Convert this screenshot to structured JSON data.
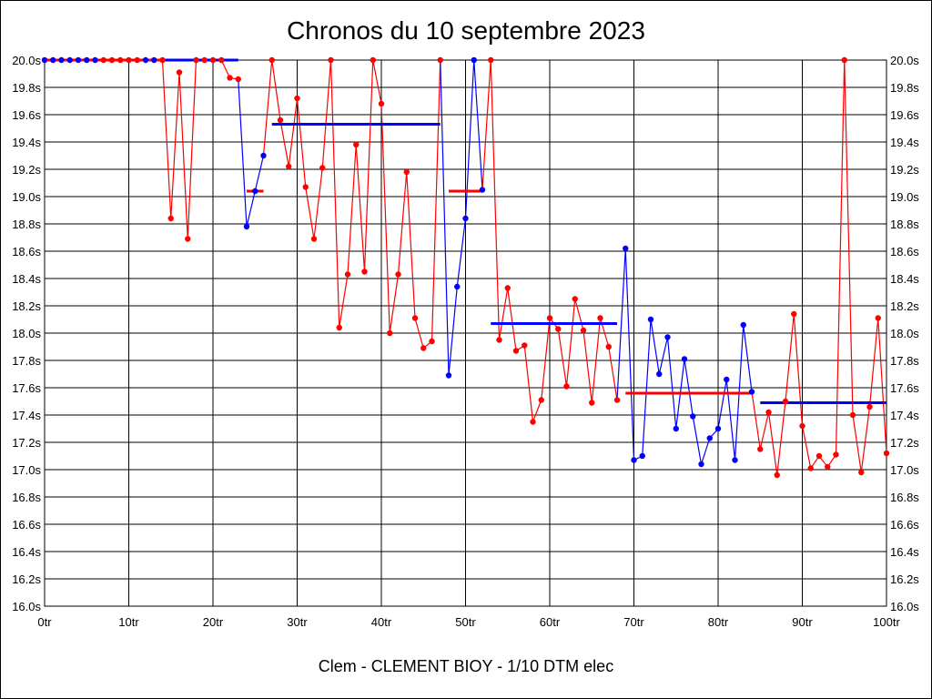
{
  "chart_data": {
    "type": "line",
    "title": "Chronos du 10 septembre 2023",
    "xlabel": "Clem - CLEMENT BIOY - 1/10 DTM elec",
    "ylabel": "",
    "xlim": [
      0,
      100
    ],
    "ylim": [
      16.0,
      20.0
    ],
    "x_ticks": [
      "0tr",
      "10tr",
      "20tr",
      "30tr",
      "40tr",
      "50tr",
      "60tr",
      "70tr",
      "80tr",
      "90tr",
      "100tr"
    ],
    "y_ticks": [
      "16.0s",
      "16.2s",
      "16.4s",
      "16.6s",
      "16.8s",
      "17.0s",
      "17.2s",
      "17.4s",
      "17.6s",
      "17.8s",
      "18.0s",
      "18.2s",
      "18.4s",
      "18.6s",
      "18.8s",
      "19.0s",
      "19.2s",
      "19.4s",
      "19.6s",
      "19.8s",
      "20.0s"
    ],
    "grid": true,
    "colors": {
      "red": "#ff0000",
      "blue": "#0000ff"
    },
    "segments": [
      {
        "color": "blue",
        "start": 0,
        "values": [
          20.0,
          20.0,
          20.0,
          20.0,
          20.0,
          20.0,
          20.0
        ]
      },
      {
        "color": "red",
        "start": 7,
        "values": [
          20.0,
          20.0,
          20.0,
          20.0,
          20.0
        ]
      },
      {
        "color": "blue",
        "start": 12,
        "values": [
          20.0,
          20.0
        ]
      },
      {
        "color": "red",
        "start": 14,
        "values": [
          20.0,
          18.84,
          19.91,
          18.69,
          20.0,
          20.0,
          20.0,
          20.0,
          19.87,
          19.86
        ]
      },
      {
        "color": "blue",
        "start": 24,
        "values": [
          18.78,
          19.04,
          19.3
        ]
      },
      {
        "color": "red",
        "start": 27,
        "values": [
          20.0,
          19.56,
          19.22,
          19.72,
          19.07,
          18.69,
          19.21,
          20.0,
          18.04,
          18.43,
          19.38,
          18.45,
          20.0,
          19.68,
          18.0,
          18.43,
          19.18,
          18.11,
          17.89,
          17.94,
          20.0
        ]
      },
      {
        "color": "blue",
        "start": 48,
        "values": [
          17.69,
          18.34,
          18.84,
          20.0,
          19.05
        ]
      },
      {
        "color": "red",
        "start": 53,
        "values": [
          20.0,
          17.95,
          18.33,
          17.87,
          17.91,
          17.35,
          17.51,
          18.11,
          18.03,
          17.61,
          18.25,
          18.02,
          17.49,
          18.11,
          17.9,
          17.51
        ]
      },
      {
        "color": "blue",
        "start": 69,
        "values": [
          18.62,
          17.07,
          17.1,
          18.1,
          17.7,
          17.97,
          17.3,
          17.81,
          17.39,
          17.04,
          17.23,
          17.3,
          17.66,
          17.07,
          18.06,
          17.57
        ]
      },
      {
        "color": "red",
        "start": 85,
        "values": [
          17.15,
          17.42,
          16.96,
          17.5,
          18.14,
          17.32,
          17.01,
          17.1,
          17.02,
          17.11,
          20.0,
          17.4,
          16.98,
          17.46,
          18.11,
          17.12
        ]
      }
    ],
    "averages": [
      {
        "color": "red",
        "from": 0,
        "to": 14,
        "value": 20.0
      },
      {
        "color": "blue",
        "from": 14,
        "to": 23,
        "value": 20.0
      },
      {
        "color": "red",
        "from": 24,
        "to": 26,
        "value": 19.04
      },
      {
        "color": "blue",
        "from": 27,
        "to": 47,
        "value": 19.53
      },
      {
        "color": "red",
        "from": 48,
        "to": 52,
        "value": 19.04
      },
      {
        "color": "blue",
        "from": 53,
        "to": 68,
        "value": 18.07
      },
      {
        "color": "red",
        "from": 69,
        "to": 84,
        "value": 17.56
      },
      {
        "color": "blue",
        "from": 85,
        "to": 100,
        "value": 17.49
      }
    ]
  }
}
